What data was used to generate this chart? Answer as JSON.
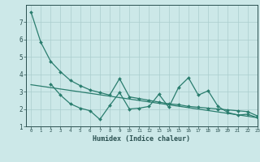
{
  "line1_x": [
    0,
    1,
    2,
    3,
    4,
    5,
    6,
    7,
    8,
    9,
    10,
    11,
    12,
    13,
    14,
    15,
    16,
    17,
    18,
    19,
    20,
    21,
    22,
    23
  ],
  "line1_y": [
    7.6,
    5.85,
    4.75,
    4.15,
    3.65,
    3.35,
    3.1,
    2.95,
    2.8,
    3.75,
    2.7,
    2.6,
    2.5,
    2.4,
    2.3,
    2.25,
    2.15,
    2.1,
    2.05,
    2.0,
    1.95,
    1.9,
    1.85,
    1.6
  ],
  "line2_x": [
    2,
    3,
    4,
    5,
    6,
    7,
    8,
    9,
    10,
    11,
    12,
    13,
    14,
    15,
    16,
    17,
    18,
    19,
    20,
    21,
    22,
    23
  ],
  "line2_y": [
    3.45,
    2.8,
    2.3,
    2.05,
    1.9,
    1.4,
    2.2,
    2.95,
    2.0,
    2.05,
    2.15,
    2.85,
    2.1,
    3.25,
    3.8,
    2.8,
    3.05,
    2.15,
    1.8,
    1.65,
    1.7,
    1.5
  ],
  "line3_x": [
    0,
    23
  ],
  "line3_y": [
    3.4,
    1.5
  ],
  "color": "#2a7d6e",
  "bg_color": "#cce8e8",
  "grid_color": "#aacece",
  "xlabel": "Humidex (Indice chaleur)",
  "ylim": [
    1,
    8
  ],
  "xlim": [
    -0.5,
    23
  ],
  "yticks": [
    1,
    2,
    3,
    4,
    5,
    6,
    7
  ],
  "xticks": [
    0,
    1,
    2,
    3,
    4,
    5,
    6,
    7,
    8,
    9,
    10,
    11,
    12,
    13,
    14,
    15,
    16,
    17,
    18,
    19,
    20,
    21,
    22,
    23
  ]
}
